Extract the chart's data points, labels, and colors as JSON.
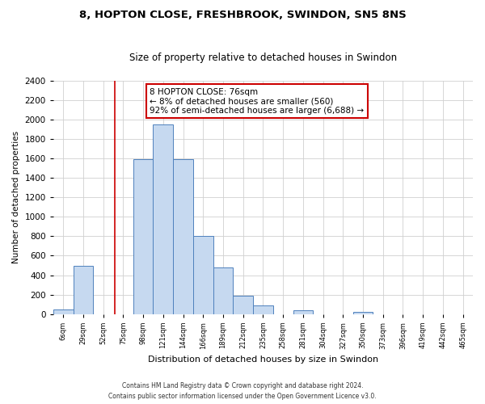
{
  "title": "8, HOPTON CLOSE, FRESHBROOK, SWINDON, SN5 8NS",
  "subtitle": "Size of property relative to detached houses in Swindon",
  "xlabel": "Distribution of detached houses by size in Swindon",
  "ylabel": "Number of detached properties",
  "bin_labels": [
    "6sqm",
    "29sqm",
    "52sqm",
    "75sqm",
    "98sqm",
    "121sqm",
    "144sqm",
    "166sqm",
    "189sqm",
    "212sqm",
    "235sqm",
    "258sqm",
    "281sqm",
    "304sqm",
    "327sqm",
    "350sqm",
    "373sqm",
    "396sqm",
    "419sqm",
    "442sqm",
    "465sqm"
  ],
  "bar_heights": [
    50,
    500,
    0,
    0,
    1590,
    1950,
    1590,
    800,
    480,
    185,
    90,
    0,
    35,
    0,
    0,
    20,
    0,
    0,
    0,
    0,
    0
  ],
  "bar_color": "#c6d9f0",
  "bar_edge_color": "#4f81bd",
  "vline_color": "#cc0000",
  "vline_pos": 3.1,
  "annotation_title": "8 HOPTON CLOSE: 76sqm",
  "annotation_line1": "← 8% of detached houses are smaller (560)",
  "annotation_line2": "92% of semi-detached houses are larger (6,688) →",
  "annotation_box_edge": "#cc0000",
  "ylim": [
    0,
    2400
  ],
  "yticks": [
    0,
    200,
    400,
    600,
    800,
    1000,
    1200,
    1400,
    1600,
    1800,
    2000,
    2200,
    2400
  ],
  "footnote1": "Contains HM Land Registry data © Crown copyright and database right 2024.",
  "footnote2": "Contains public sector information licensed under the Open Government Licence v3.0.",
  "bg_color": "#ffffff",
  "plot_bg_color": "#ffffff"
}
